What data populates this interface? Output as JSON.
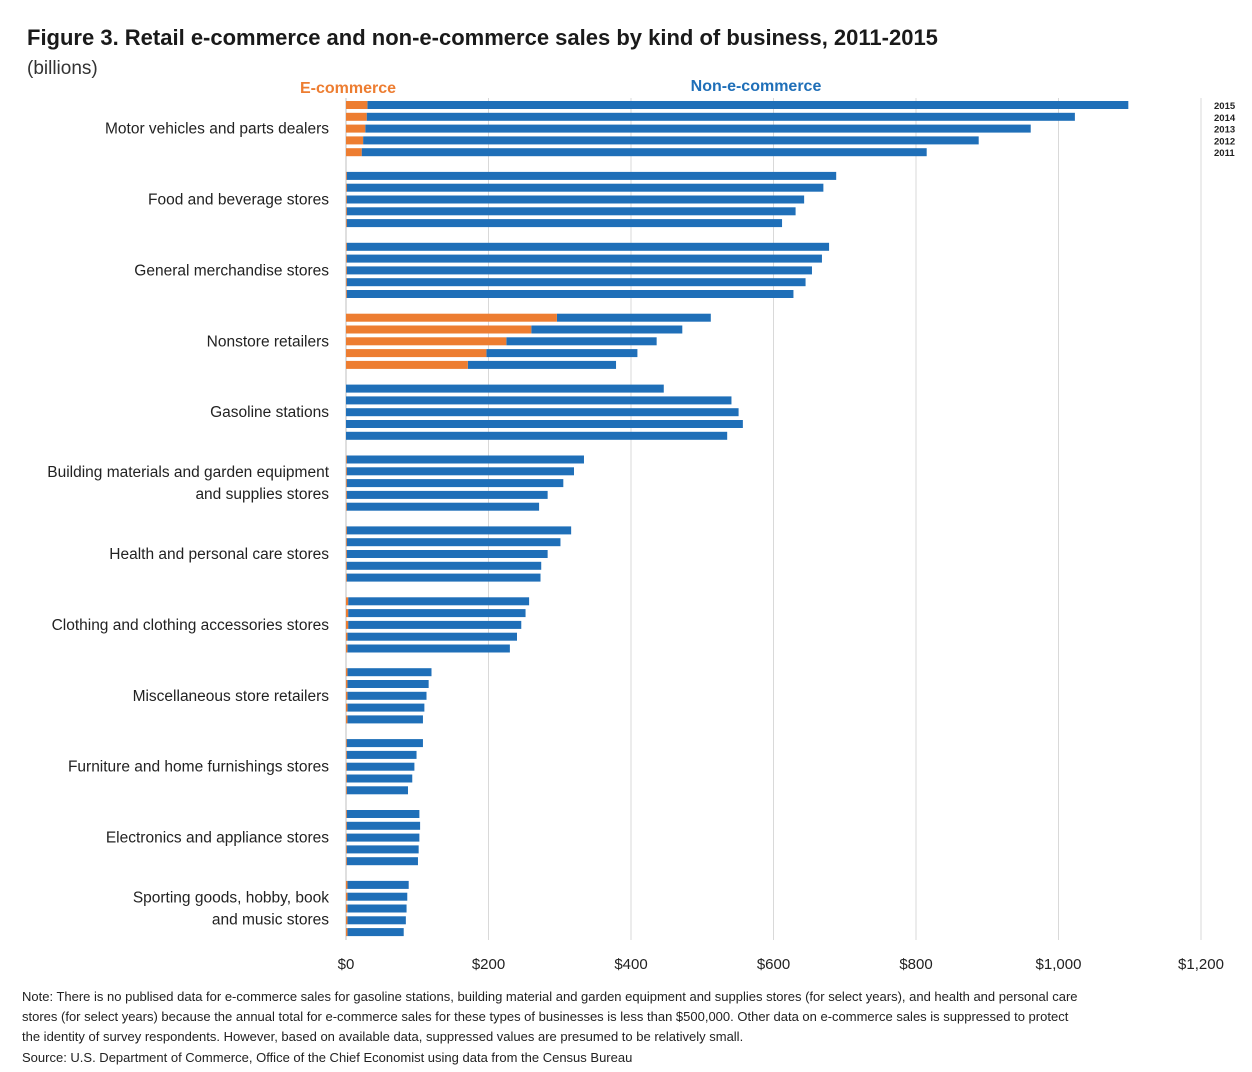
{
  "title": "Figure 3. Retail e-commerce and non-e-commerce  sales by kind of business, 2011-2015",
  "subtitle": "(billions)",
  "colors": {
    "ecommerce": "#ED7D31",
    "non_ecommerce": "#1F6FB8",
    "grid": "#d9d9d9"
  },
  "legend": {
    "ecommerce": "E-commerce",
    "non_ecommerce": "Non-e-commerce"
  },
  "note_lines": [
    "Note:  There  is no publised data for e-commerce  sales for gasoline stations, building material and garden equipment  and supplies stores (for select years), and health and personal care",
    "stores (for select years) because the  annual total for e-commerce   sales for these types of businesses is less than $500,000. Other data on e-commerce  sales is suppressed to protect",
    "the  identity of survey respondents. However,  based on available data, suppressed values are presumed to  be relatively small."
  ],
  "source": "Source:  U.S. Department  of Commerce,  Office of the Chief Economist using data from the Census Bureau",
  "chart_data": {
    "type": "bar",
    "orientation": "horizontal",
    "stacked": true,
    "xlim": [
      0,
      1200
    ],
    "xticks": [
      0,
      200,
      400,
      600,
      800,
      1000,
      1200
    ],
    "xtick_labels": [
      "$0",
      "$200",
      "$400",
      "$600",
      "$800",
      "$1,000",
      "$1,200"
    ],
    "grid": true,
    "legend_position": "top",
    "years": [
      "2015",
      "2014",
      "2013",
      "2012",
      "2011"
    ],
    "categories": [
      {
        "label_lines": [
          "Motor vehicles and parts dealers"
        ],
        "ecommerce": [
          30,
          29,
          27,
          24,
          22
        ],
        "total": [
          1098,
          1023,
          961,
          888,
          815
        ]
      },
      {
        "label_lines": [
          "Food and beverage stores"
        ],
        "ecommerce": [
          1,
          1,
          1,
          1,
          1
        ],
        "total": [
          688,
          670,
          643,
          631,
          612
        ]
      },
      {
        "label_lines": [
          "General merchandise stores"
        ],
        "ecommerce": [
          1,
          1,
          1,
          1,
          1
        ],
        "total": [
          678,
          668,
          654,
          645,
          628
        ]
      },
      {
        "label_lines": [
          "Nonstore retailers"
        ],
        "ecommerce": [
          296,
          260,
          225,
          197,
          171
        ],
        "total": [
          512,
          472,
          436,
          409,
          379
        ]
      },
      {
        "label_lines": [
          "Gasoline stations"
        ],
        "ecommerce": [
          0,
          0,
          0,
          0,
          0
        ],
        "total": [
          446,
          541,
          551,
          557,
          535
        ]
      },
      {
        "label_lines": [
          "Building materials and garden equipment",
          "and supplies stores"
        ],
        "ecommerce": [
          1,
          1,
          1,
          1,
          1
        ],
        "total": [
          334,
          320,
          305,
          283,
          271
        ]
      },
      {
        "label_lines": [
          "Health and personal care stores"
        ],
        "ecommerce": [
          1,
          1,
          1,
          1,
          1
        ],
        "total": [
          316,
          301,
          283,
          274,
          273
        ]
      },
      {
        "label_lines": [
          "Clothing and clothing accessories stores"
        ],
        "ecommerce": [
          3,
          3,
          3,
          2,
          2
        ],
        "total": [
          257,
          252,
          246,
          240,
          230
        ]
      },
      {
        "label_lines": [
          "Miscellaneous store retailers"
        ],
        "ecommerce": [
          2,
          2,
          2,
          2,
          2
        ],
        "total": [
          120,
          116,
          113,
          110,
          108
        ]
      },
      {
        "label_lines": [
          "Furniture and home furnishings stores"
        ],
        "ecommerce": [
          1,
          1,
          1,
          1,
          1
        ],
        "total": [
          108,
          99,
          96,
          93,
          87
        ]
      },
      {
        "label_lines": [
          "Electronics and appliance stores"
        ],
        "ecommerce": [
          1,
          1,
          1,
          1,
          1
        ],
        "total": [
          103,
          104,
          103,
          102,
          101
        ]
      },
      {
        "label_lines": [
          "Sporting goods, hobby, book",
          "and music stores"
        ],
        "ecommerce": [
          2,
          2,
          2,
          2,
          2
        ],
        "total": [
          88,
          86,
          85,
          84,
          81
        ]
      }
    ]
  }
}
